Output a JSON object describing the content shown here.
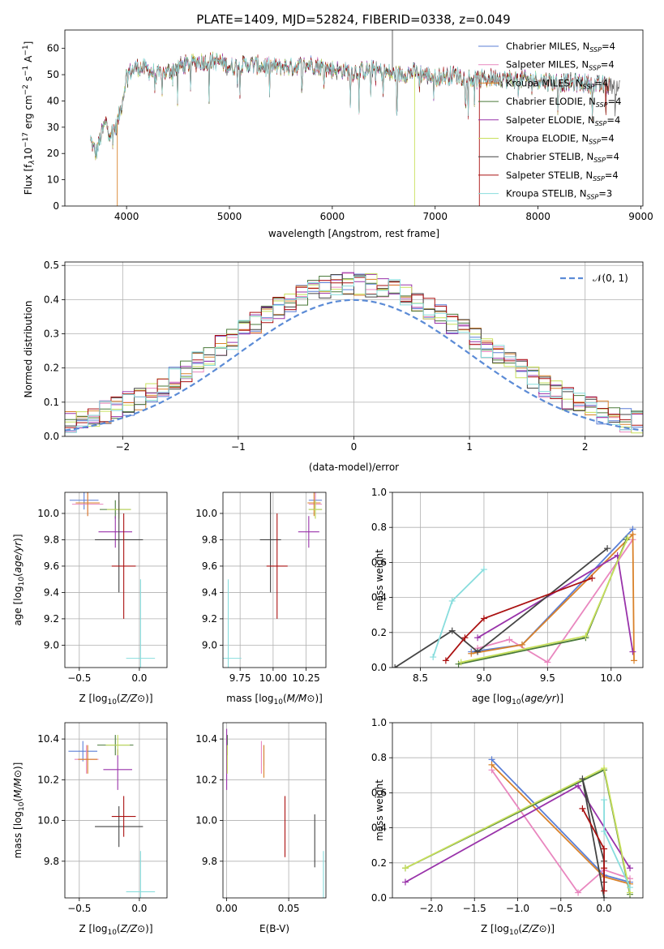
{
  "title": "PLATE=1409, MJD=52824, FIBERID=0338, z=0.049",
  "colors": {
    "Chabrier MILES": "#5b7fd6",
    "Salpeter MILES": "#e987bf",
    "Kroupa MILES": "#d9822b",
    "Chabrier ELODIE": "#4a7a3a",
    "Salpeter ELODIE": "#9933aa",
    "Kroupa ELODIE": "#c8e05c",
    "Chabrier STELIB": "#444444",
    "Salpeter STELIB": "#aa1111",
    "Kroupa STELIB": "#88dddd",
    "normal": "#5b8bd6"
  },
  "chart_data": [
    {
      "id": "spectrum",
      "type": "line",
      "xlabel": "wavelength [Angstrom, rest frame]",
      "ylabel": "Flux [f_λ10^-17 erg cm^-2 s^-1 A^-1]",
      "xlim": [
        3400,
        9020
      ],
      "ylim": [
        0,
        67
      ],
      "xticks": [
        4000,
        5000,
        6000,
        7000,
        8000,
        9000
      ],
      "yticks": [
        0,
        10,
        20,
        30,
        40,
        50,
        60
      ],
      "legend": "right",
      "series": [
        {
          "label": "Chabrier MILES, N",
          "sub": "SSP",
          "suffix": "=4"
        },
        {
          "label": "Salpeter MILES, N",
          "sub": "SSP",
          "suffix": "=4"
        },
        {
          "label": "Kroupa MILES, N",
          "sub": "SSP",
          "suffix": "=4"
        },
        {
          "label": "Chabrier ELODIE, N",
          "sub": "SSP",
          "suffix": "=4"
        },
        {
          "label": "Salpeter ELODIE, N",
          "sub": "SSP",
          "suffix": "=4"
        },
        {
          "label": "Kroupa ELODIE, N",
          "sub": "SSP",
          "suffix": "=4"
        },
        {
          "label": "Chabrier STELIB, N",
          "sub": "SSP",
          "suffix": "=4"
        },
        {
          "label": "Salpeter STELIB, N",
          "sub": "SSP",
          "suffix": "=4"
        },
        {
          "label": "Kroupa STELIB, N",
          "sub": "SSP",
          "suffix": "=3"
        }
      ],
      "envelope": {
        "x": [
          3650,
          3700,
          3760,
          3800,
          3840,
          3900,
          3950,
          4000,
          4100,
          4200,
          4300,
          4400,
          4500,
          4700,
          4900,
          5000,
          5200,
          5400,
          5600,
          5800,
          6000,
          6200,
          6400,
          6600,
          6800,
          7000,
          7200,
          7400,
          7600,
          7800,
          8000,
          8200,
          8400,
          8600,
          8800
        ],
        "y": [
          25,
          20,
          28,
          32,
          28,
          30,
          38,
          50,
          53,
          52,
          50,
          51,
          53,
          55,
          55,
          53,
          54,
          53,
          53,
          54,
          52,
          51,
          52,
          50,
          51,
          49,
          50,
          48,
          49,
          48,
          48,
          47,
          47,
          46,
          46
        ]
      },
      "drops": [
        3910,
        6800,
        7430
      ]
    },
    {
      "id": "residuals",
      "type": "histogram",
      "xlabel": "(data-model)/error",
      "ylabel": "Normed distribution",
      "xlim": [
        -2.5,
        2.5
      ],
      "ylim": [
        0,
        0.51
      ],
      "xticks": [
        -2,
        -1,
        0,
        1,
        2
      ],
      "yticks": [
        0,
        0.1,
        0.2,
        0.3,
        0.4,
        0.5
      ],
      "bin_width": 0.1,
      "legend_label": "𝒩(0, 1)"
    },
    {
      "id": "age-vs-Z",
      "type": "errorbar",
      "xlabel": "Z [log10(Z/Z⊙)]",
      "ylabel": "age  [log10(age/yr)]",
      "xlim": [
        -0.62,
        0.23
      ],
      "ylim": [
        8.83,
        10.16
      ],
      "xticks": [
        -0.5,
        0.0
      ],
      "yticks": [
        9.0,
        9.2,
        9.4,
        9.6,
        9.8,
        10.0
      ],
      "points": [
        {
          "m": "Chabrier MILES",
          "x": -0.46,
          "y": 10.1,
          "xerr": 0.12,
          "yerr": 0.07
        },
        {
          "m": "Salpeter MILES",
          "x": -0.43,
          "y": 10.07,
          "xerr": 0.13,
          "yerr": 0.09
        },
        {
          "m": "Kroupa MILES",
          "x": -0.43,
          "y": 10.08,
          "xerr": 0.1,
          "yerr": 0.1
        },
        {
          "m": "Chabrier ELODIE",
          "x": -0.2,
          "y": 10.03,
          "xerr": 0.13,
          "yerr": 0.07
        },
        {
          "m": "Salpeter ELODIE",
          "x": -0.2,
          "y": 9.86,
          "xerr": 0.14,
          "yerr": 0.12
        },
        {
          "m": "Kroupa ELODIE",
          "x": -0.17,
          "y": 10.03,
          "xerr": 0.1,
          "yerr": 0.07
        },
        {
          "m": "Chabrier STELIB",
          "x": -0.17,
          "y": 9.8,
          "xerr": 0.2,
          "yerr": 0.4
        },
        {
          "m": "Salpeter STELIB",
          "x": -0.13,
          "y": 9.6,
          "xerr": 0.1,
          "yerr": 0.4
        },
        {
          "m": "Kroupa STELIB",
          "x": 0.01,
          "y": 8.9,
          "xerr": 0.12,
          "yerr": 0.6
        }
      ]
    },
    {
      "id": "age-vs-mass",
      "type": "errorbar",
      "xlabel": "mass [log10(M/M⊙)]",
      "ylabel": "",
      "xlim": [
        9.62,
        10.4
      ],
      "ylim": [
        8.83,
        10.16
      ],
      "xticks": [
        9.75,
        10.0,
        10.25
      ],
      "yticks": [
        9.0,
        9.2,
        9.4,
        9.6,
        9.8,
        10.0
      ],
      "points": [
        {
          "m": "Chabrier MILES",
          "x": 10.32,
          "y": 10.1,
          "xerr": 0.05,
          "yerr": 0.07
        },
        {
          "m": "Salpeter MILES",
          "x": 10.32,
          "y": 10.07,
          "xerr": 0.05,
          "yerr": 0.09
        },
        {
          "m": "Kroupa MILES",
          "x": 10.31,
          "y": 10.08,
          "xerr": 0.05,
          "yerr": 0.1
        },
        {
          "m": "Chabrier ELODIE",
          "x": 10.32,
          "y": 10.03,
          "xerr": 0.05,
          "yerr": 0.07
        },
        {
          "m": "Salpeter ELODIE",
          "x": 10.27,
          "y": 9.86,
          "xerr": 0.08,
          "yerr": 0.12
        },
        {
          "m": "Kroupa ELODIE",
          "x": 10.32,
          "y": 10.03,
          "xerr": 0.05,
          "yerr": 0.07
        },
        {
          "m": "Chabrier STELIB",
          "x": 9.98,
          "y": 9.8,
          "xerr": 0.08,
          "yerr": 0.4
        },
        {
          "m": "Salpeter STELIB",
          "x": 10.03,
          "y": 9.6,
          "xerr": 0.08,
          "yerr": 0.4
        },
        {
          "m": "Kroupa STELIB",
          "x": 9.66,
          "y": 8.9,
          "xerr": 0.1,
          "yerr": 0.6
        }
      ]
    },
    {
      "id": "weight-vs-age",
      "type": "line",
      "xlabel": "age  [log10(age/yr)]",
      "ylabel": "mass weight",
      "xlim": [
        8.28,
        10.25
      ],
      "ylim": [
        0,
        1.0
      ],
      "xticks": [
        8.5,
        9.0,
        9.5,
        10.0
      ],
      "yticks": [
        0.0,
        0.2,
        0.4,
        0.6,
        0.8,
        1.0
      ],
      "series": [
        {
          "m": "Chabrier MILES",
          "x": [
            8.9,
            9.3,
            10.17
          ],
          "y": [
            0.09,
            0.13,
            0.79
          ]
        },
        {
          "m": "Salpeter MILES",
          "x": [
            8.95,
            9.2,
            9.5,
            10.17
          ],
          "y": [
            0.11,
            0.16,
            0.03,
            0.73
          ]
        },
        {
          "m": "Kroupa MILES",
          "x": [
            8.9,
            9.3,
            10.17,
            10.18
          ],
          "y": [
            0.08,
            0.13,
            0.76,
            0.04
          ]
        },
        {
          "m": "Chabrier ELODIE",
          "x": [
            8.8,
            9.8,
            10.12
          ],
          "y": [
            0.02,
            0.17,
            0.73
          ]
        },
        {
          "m": "Salpeter ELODIE",
          "x": [
            8.95,
            10.05,
            10.17
          ],
          "y": [
            0.17,
            0.64,
            0.09
          ]
        },
        {
          "m": "Kroupa ELODIE",
          "x": [
            8.82,
            9.8,
            10.13
          ],
          "y": [
            0.03,
            0.18,
            0.74
          ]
        },
        {
          "m": "Chabrier STELIB",
          "x": [
            8.3,
            8.75,
            8.95,
            9.97
          ],
          "y": [
            0.0,
            0.21,
            0.09,
            0.68
          ]
        },
        {
          "m": "Salpeter STELIB",
          "x": [
            8.7,
            8.85,
            9.0,
            9.85
          ],
          "y": [
            0.04,
            0.17,
            0.28,
            0.51
          ]
        },
        {
          "m": "Kroupa STELIB",
          "x": [
            8.6,
            8.75,
            9.0
          ],
          "y": [
            0.06,
            0.38,
            0.56
          ]
        }
      ]
    },
    {
      "id": "mass-vs-Z",
      "type": "errorbar",
      "xlabel": "Z [log10(Z/Z⊙)]",
      "ylabel": "mass [log10(M/M⊙)]",
      "xlim": [
        -0.62,
        0.23
      ],
      "ylim": [
        9.62,
        10.48
      ],
      "xticks": [
        -0.5,
        0.0
      ],
      "yticks": [
        9.8,
        10.0,
        10.2,
        10.4
      ],
      "points": [
        {
          "m": "Chabrier MILES",
          "x": -0.47,
          "y": 10.34,
          "xerr": 0.12,
          "yerr": 0.05
        },
        {
          "m": "Salpeter MILES",
          "x": -0.44,
          "y": 10.3,
          "xerr": 0.1,
          "yerr": 0.07
        },
        {
          "m": "Kroupa MILES",
          "x": -0.43,
          "y": 10.3,
          "xerr": 0.08,
          "yerr": 0.07
        },
        {
          "m": "Chabrier ELODIE",
          "x": -0.2,
          "y": 10.37,
          "xerr": 0.15,
          "yerr": 0.05
        },
        {
          "m": "Salpeter ELODIE",
          "x": -0.18,
          "y": 10.25,
          "xerr": 0.12,
          "yerr": 0.1
        },
        {
          "m": "Kroupa ELODIE",
          "x": -0.18,
          "y": 10.37,
          "xerr": 0.1,
          "yerr": 0.05
        },
        {
          "m": "Chabrier STELIB",
          "x": -0.17,
          "y": 9.97,
          "xerr": 0.2,
          "yerr": 0.1
        },
        {
          "m": "Salpeter STELIB",
          "x": -0.13,
          "y": 10.02,
          "xerr": 0.1,
          "yerr": 0.1
        },
        {
          "m": "Kroupa STELIB",
          "x": 0.01,
          "y": 9.65,
          "xerr": 0.12,
          "yerr": 0.2
        }
      ]
    },
    {
      "id": "mass-vs-ebv",
      "type": "errorbar",
      "xlabel": "E(B-V)",
      "ylabel": "",
      "xlim": [
        -0.003,
        0.08
      ],
      "ylim": [
        9.62,
        10.48
      ],
      "xticks": [
        0.0,
        0.05
      ],
      "yticks": [
        9.8,
        10.0,
        10.2,
        10.4
      ],
      "points": [
        {
          "m": "Chabrier MILES",
          "x": 0.03,
          "y": 10.32,
          "xerr": 0,
          "yerr": 0.05
        },
        {
          "m": "Salpeter MILES",
          "x": 0.028,
          "y": 10.31,
          "xerr": 0,
          "yerr": 0.08
        },
        {
          "m": "Kroupa MILES",
          "x": 0.03,
          "y": 10.29,
          "xerr": 0,
          "yerr": 0.08
        },
        {
          "m": "Chabrier ELODIE",
          "x": 0.0005,
          "y": 10.37,
          "xerr": 0,
          "yerr": 0.05
        },
        {
          "m": "Salpeter ELODIE",
          "x": 0.0,
          "y": 10.3,
          "xerr": 0,
          "yerr": 0.15
        },
        {
          "m": "Kroupa ELODIE",
          "x": 0.0005,
          "y": 10.3,
          "xerr": 0,
          "yerr": 0.07
        },
        {
          "m": "Chabrier STELIB",
          "x": 0.071,
          "y": 9.9,
          "xerr": 0,
          "yerr": 0.13
        },
        {
          "m": "Salpeter STELIB",
          "x": 0.047,
          "y": 9.97,
          "xerr": 0,
          "yerr": 0.15
        },
        {
          "m": "Kroupa STELIB",
          "x": 0.078,
          "y": 9.7,
          "xerr": 0,
          "yerr": 0.15
        }
      ]
    },
    {
      "id": "weight-vs-Z",
      "type": "line",
      "xlabel": "Z [log10(Z/Z⊙)]",
      "ylabel": "mass weight",
      "xlim": [
        -2.45,
        0.45
      ],
      "ylim": [
        0,
        1.0
      ],
      "xticks": [
        -2.0,
        -1.5,
        -1.0,
        -0.5,
        0.0
      ],
      "yticks": [
        0.0,
        0.2,
        0.4,
        0.6,
        0.8,
        1.0
      ],
      "series": [
        {
          "m": "Chabrier MILES",
          "x": [
            -1.3,
            0.0,
            0.3
          ],
          "y": [
            0.79,
            0.13,
            0.09
          ]
        },
        {
          "m": "Salpeter MILES",
          "x": [
            -1.3,
            -0.3,
            0.0,
            0.3
          ],
          "y": [
            0.73,
            0.03,
            0.16,
            0.11
          ]
        },
        {
          "m": "Kroupa MILES",
          "x": [
            -1.3,
            0.0,
            0.3
          ],
          "y": [
            0.76,
            0.12,
            0.08
          ]
        },
        {
          "m": "Chabrier ELODIE",
          "x": [
            -2.3,
            0.0,
            0.3
          ],
          "y": [
            0.17,
            0.73,
            0.02
          ]
        },
        {
          "m": "Salpeter ELODIE",
          "x": [
            -2.3,
            -0.3,
            0.3
          ],
          "y": [
            0.09,
            0.64,
            0.17
          ]
        },
        {
          "m": "Kroupa ELODIE",
          "x": [
            -2.3,
            0.0,
            0.3
          ],
          "y": [
            0.17,
            0.74,
            0.03
          ]
        },
        {
          "m": "Chabrier STELIB",
          "x": [
            0.0,
            -0.25,
            0.0,
            0.0
          ],
          "y": [
            0.0,
            0.68,
            0.21,
            0.09
          ]
        },
        {
          "m": "Salpeter STELIB",
          "x": [
            -0.25,
            0.0,
            0.0,
            0.0
          ],
          "y": [
            0.51,
            0.28,
            0.17,
            0.04
          ]
        },
        {
          "m": "Kroupa STELIB",
          "x": [
            0.0,
            0.0,
            0.3
          ],
          "y": [
            0.56,
            0.38,
            0.06
          ]
        }
      ]
    }
  ]
}
